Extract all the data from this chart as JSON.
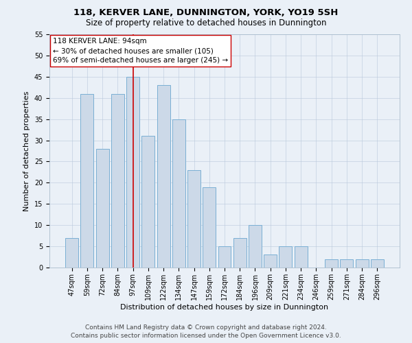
{
  "title": "118, KERVER LANE, DUNNINGTON, YORK, YO19 5SH",
  "subtitle": "Size of property relative to detached houses in Dunnington",
  "xlabel": "Distribution of detached houses by size in Dunnington",
  "ylabel": "Number of detached properties",
  "categories": [
    "47sqm",
    "59sqm",
    "72sqm",
    "84sqm",
    "97sqm",
    "109sqm",
    "122sqm",
    "134sqm",
    "147sqm",
    "159sqm",
    "172sqm",
    "184sqm",
    "196sqm",
    "209sqm",
    "221sqm",
    "234sqm",
    "246sqm",
    "259sqm",
    "271sqm",
    "284sqm",
    "296sqm"
  ],
  "values": [
    7,
    41,
    28,
    41,
    45,
    31,
    43,
    35,
    23,
    19,
    5,
    7,
    10,
    3,
    5,
    5,
    0,
    2,
    2,
    2,
    2
  ],
  "bar_color": "#ccd9e8",
  "bar_edge_color": "#7aafd4",
  "vline_x": 4.0,
  "vline_color": "#cc0000",
  "annotation_text": "118 KERVER LANE: 94sqm\n← 30% of detached houses are smaller (105)\n69% of semi-detached houses are larger (245) →",
  "annotation_box_color": "#ffffff",
  "annotation_box_edge": "#cc0000",
  "ylim": [
    0,
    55
  ],
  "yticks": [
    0,
    5,
    10,
    15,
    20,
    25,
    30,
    35,
    40,
    45,
    50,
    55
  ],
  "footer_line1": "Contains HM Land Registry data © Crown copyright and database right 2024.",
  "footer_line2": "Contains public sector information licensed under the Open Government Licence v3.0.",
  "background_color": "#eaf0f7",
  "plot_bg_color": "#eaf0f7",
  "title_fontsize": 9.5,
  "subtitle_fontsize": 8.5,
  "label_fontsize": 8,
  "tick_fontsize": 7,
  "footer_fontsize": 6.5,
  "annot_fontsize": 7.5
}
